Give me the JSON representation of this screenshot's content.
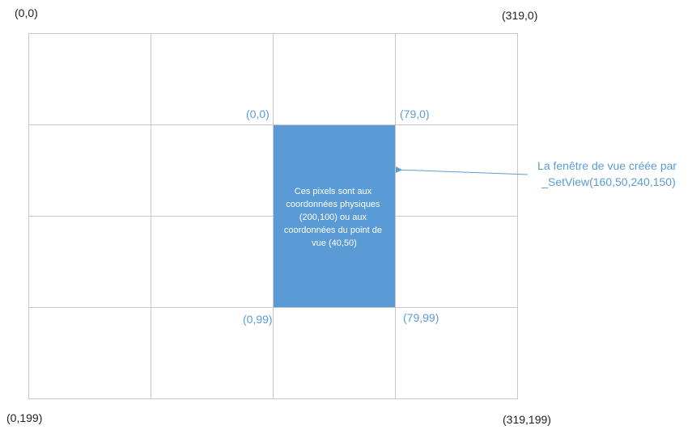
{
  "colors": {
    "grid_line": "#c8c8c8",
    "viewport_fill": "#5b9bd5",
    "viewport_text": "#ffffff",
    "physical_label": "#222222",
    "view_label": "#5b9bd5",
    "arrow": "#5b9bd5"
  },
  "physical_corners": {
    "top_left": "(0,0)",
    "top_right": "(319,0)",
    "bottom_left": "(0,199)",
    "bottom_right": "(319,199)"
  },
  "view_corners": {
    "top_left": "(0,0)",
    "top_right": "(79,0)",
    "bottom_left": "(0,99)",
    "bottom_right": "(79,99)"
  },
  "viewport_text_lines": [
    "Ces pixels sont aux",
    "coordonnées physiques",
    "(200,100) ou aux",
    "coordonnées du point de",
    "vue (40,50)"
  ],
  "callout_lines": [
    "La fenêtre de vue créée par",
    "_SetView(160,50,240,150)"
  ]
}
